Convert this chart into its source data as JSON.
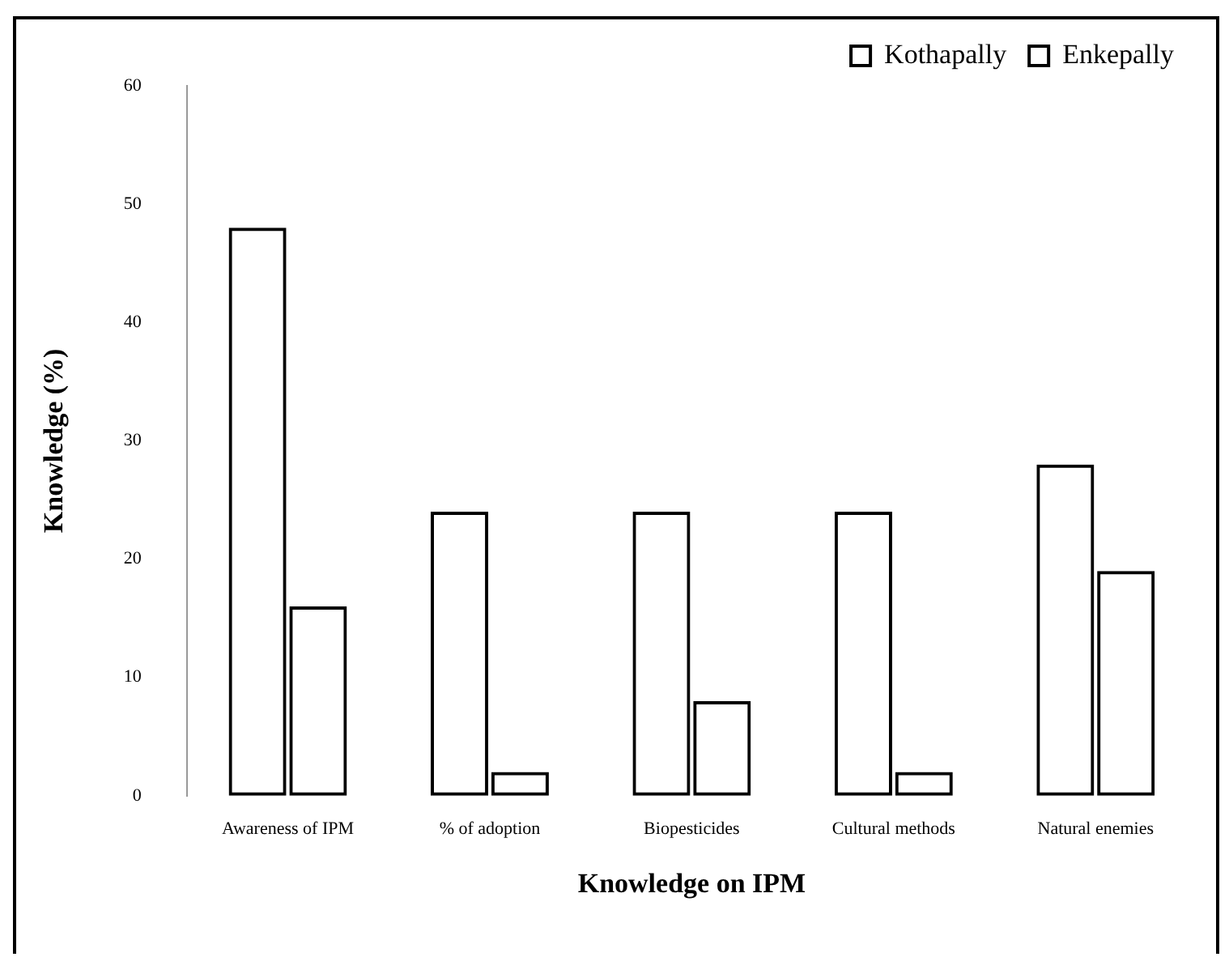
{
  "chart_data": {
    "type": "bar",
    "xlabel": "Knowledge on IPM",
    "ylabel": "Knowledge (%)",
    "categories": [
      "Awareness of IPM",
      "% of adoption",
      "Biopesticides",
      "Cultural methods",
      "Natural enemies"
    ],
    "series": [
      {
        "name": "Kothapally",
        "color": "#000000",
        "values": [
          48,
          24,
          24,
          24,
          28
        ]
      },
      {
        "name": "Enkepally",
        "color": "#000000",
        "values": [
          16,
          2,
          8,
          2,
          19
        ]
      }
    ],
    "ylim": [
      0,
      60
    ],
    "yticks": [
      0,
      10,
      20,
      30,
      40,
      50,
      60
    ],
    "grid": false,
    "legend": "top right"
  }
}
